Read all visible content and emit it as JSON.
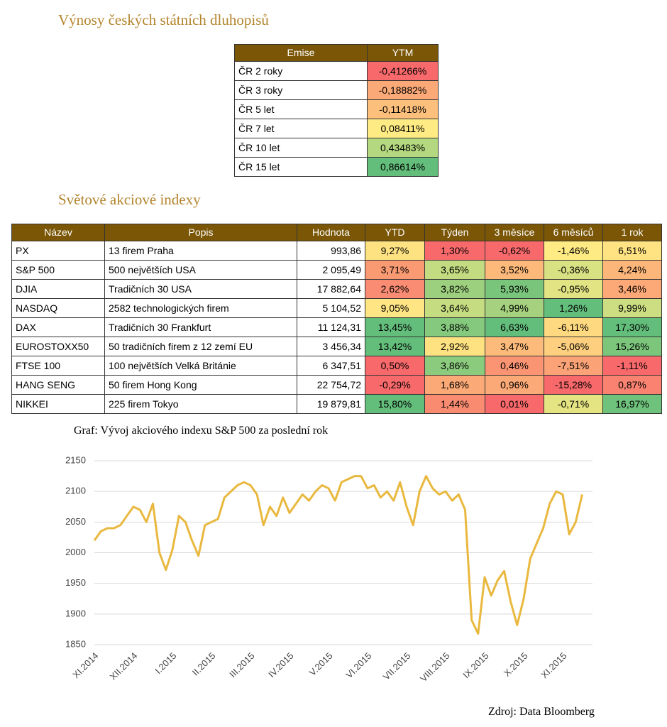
{
  "title": "Výnosy českých státních dluhopisů",
  "bonds": {
    "header": [
      "Emise",
      "YTM"
    ],
    "rows": [
      [
        "ČR 2 roky",
        "-0,41266%"
      ],
      [
        "ČR 3 roky",
        "-0,18882%"
      ],
      [
        "ČR 5 let",
        "-0,11418%"
      ],
      [
        "ČR 7 let",
        "0,08411%"
      ],
      [
        "ČR 10 let",
        "0,43483%"
      ],
      [
        "ČR 15 let",
        "0,86614%"
      ]
    ],
    "colors": [
      "#f8696b",
      "#fba977",
      "#fdc07c",
      "#ffeb84",
      "#b4d87f",
      "#63be7b"
    ]
  },
  "indices_title": "Světové akciové indexy",
  "indices": {
    "header": [
      "Název",
      "Popis",
      "Hodnota",
      "YTD",
      "Týden",
      "3 měsíce",
      "6 měsíců",
      "1 rok"
    ],
    "rows": [
      [
        "PX",
        "13 firem Praha",
        "993,86",
        "9,27%",
        "1,30%",
        "-0,62%",
        "-1,46%",
        "6,51%"
      ],
      [
        "S&P 500",
        "500 největších USA",
        "2 095,49",
        "3,71%",
        "3,65%",
        "3,52%",
        "-0,36%",
        "4,24%"
      ],
      [
        "DJIA",
        "Tradičních 30 USA",
        "17 882,64",
        "2,62%",
        "3,82%",
        "5,93%",
        "-0,95%",
        "3,46%"
      ],
      [
        "NASDAQ",
        "2582 technologických firem",
        "5 104,52",
        "9,05%",
        "3,64%",
        "4,99%",
        "1,26%",
        "9,99%"
      ],
      [
        "DAX",
        "Tradičních 30 Frankfurt",
        "11 124,31",
        "13,45%",
        "3,88%",
        "6,63%",
        "-6,11%",
        "17,30%"
      ],
      [
        "EUROSTOXX50",
        "50 tradičních firem z 12 zemí EU",
        "3 456,34",
        "13,42%",
        "2,92%",
        "3,47%",
        "-5,06%",
        "15,26%"
      ],
      [
        "FTSE 100",
        "100 největších Velká Británie",
        "6 347,51",
        "0,50%",
        "3,86%",
        "0,46%",
        "-7,51%",
        "-1,11%"
      ],
      [
        "HANG SENG",
        "50 firem Hong Kong",
        "22 754,72",
        "-0,29%",
        "1,68%",
        "0,96%",
        "-15,28%",
        "0,87%"
      ],
      [
        "NIKKEI",
        "225 firem Tokyo",
        "19 879,81",
        "15,80%",
        "1,44%",
        "0,01%",
        "-0,71%",
        "16,97%"
      ]
    ],
    "colors": [
      [
        "#fee282",
        "#f8696b",
        "#f8696b",
        "#ffeb84",
        "#ffe383"
      ],
      [
        "#fa9a73",
        "#c3dc81",
        "#fcb97a",
        "#d8e283",
        "#fcb679"
      ],
      [
        "#f98c72",
        "#9ccf7e",
        "#7ac57c",
        "#e2e483",
        "#fca877"
      ],
      [
        "#ffe584",
        "#c5dc81",
        "#a6d27f",
        "#63be7b",
        "#ccdd82"
      ],
      [
        "#63be7b",
        "#84c97d",
        "#63be7b",
        "#fed980",
        "#63be7b"
      ],
      [
        "#64be7b",
        "#fee282",
        "#fcbb7a",
        "#fdcf7f",
        "#7cc67c"
      ],
      [
        "#f8696b",
        "#8bcb7d",
        "#fa9473",
        "#fba376",
        "#f8696b"
      ],
      [
        "#f8696b",
        "#fbaa77",
        "#fba977",
        "#f8696b",
        "#f98370"
      ],
      [
        "#63be7b",
        "#f98b71",
        "#f8696b",
        "#e4e483",
        "#6fc27c"
      ]
    ]
  },
  "chart_data": {
    "type": "line",
    "title": "Graf: Vývoj akciového indexu S&P 500 za poslední rok",
    "categories": [
      "XI.2014",
      null,
      null,
      null,
      null,
      null,
      "XII.2014",
      null,
      null,
      null,
      null,
      null,
      "I.2015",
      null,
      null,
      null,
      null,
      null,
      "II.2015",
      null,
      null,
      null,
      null,
      null,
      "III.2015",
      null,
      null,
      null,
      null,
      null,
      "IV.2015",
      null,
      null,
      null,
      null,
      null,
      "V.2015",
      null,
      null,
      null,
      null,
      null,
      "VI.2015",
      null,
      null,
      null,
      null,
      null,
      "VII.2015",
      null,
      null,
      null,
      null,
      null,
      "VIII.2015",
      null,
      null,
      null,
      null,
      null,
      "IX.2015",
      null,
      null,
      null,
      null,
      null,
      "X.2015",
      null,
      null,
      null,
      null,
      null,
      "XI.2015",
      null,
      null,
      null
    ],
    "values": [
      2020,
      2035,
      2040,
      2040,
      2045,
      2060,
      2075,
      2070,
      2050,
      2080,
      2000,
      1972,
      2005,
      2060,
      2050,
      2020,
      1995,
      2045,
      2050,
      2055,
      2090,
      2100,
      2110,
      2115,
      2110,
      2095,
      2045,
      2075,
      2060,
      2090,
      2065,
      2080,
      2095,
      2085,
      2100,
      2110,
      2105,
      2085,
      2115,
      2120,
      2125,
      2125,
      2105,
      2110,
      2090,
      2100,
      2085,
      2115,
      2075,
      2045,
      2100,
      2125,
      2105,
      2095,
      2100,
      2085,
      2095,
      2070,
      1890,
      1868,
      1960,
      1930,
      1955,
      1970,
      1920,
      1882,
      1925,
      1990,
      2015,
      2040,
      2080,
      2100,
      2095,
      2030,
      2050,
      2095
    ],
    "color": "#e9b83e",
    "ylim": [
      1850,
      2150
    ],
    "yticks": [
      1850,
      1900,
      1950,
      2000,
      2050,
      2100,
      2150
    ],
    "grid": true
  },
  "source": "Zdroj: Data Bloomberg"
}
